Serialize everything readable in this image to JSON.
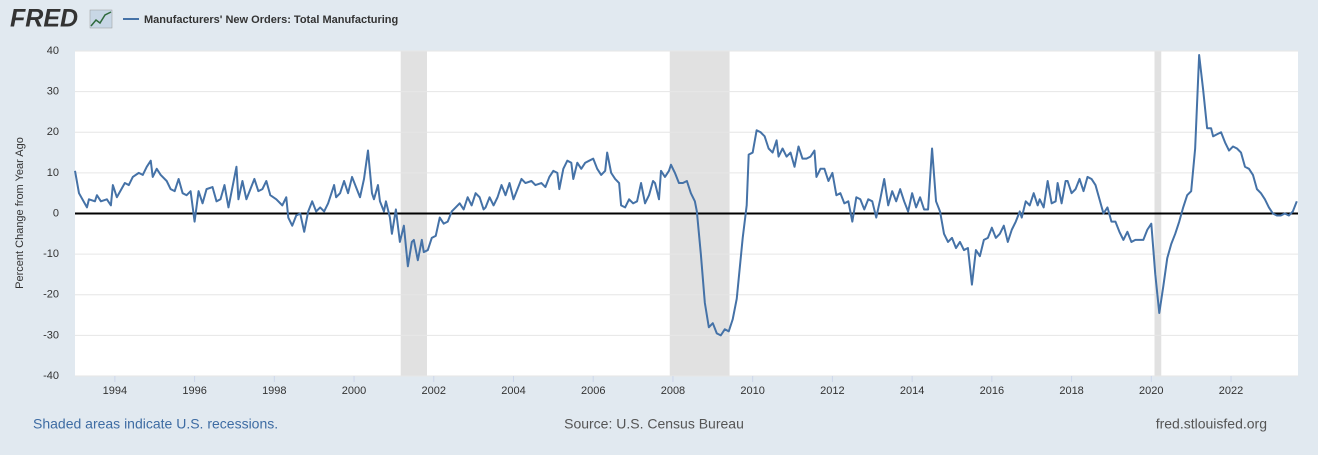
{
  "chart_data": {
    "type": "line",
    "logo": "FRED",
    "y_axis_label": "Percent Change from Year Ago",
    "note": "Shaded areas indicate U.S. recessions.",
    "source": "Source: U.S. Census Bureau",
    "website": "fred.stlouisfed.org",
    "xlim": [
      1993.0,
      2023.68
    ],
    "xticks": [
      1994,
      1996,
      1998,
      2000,
      2002,
      2004,
      2006,
      2008,
      2010,
      2012,
      2014,
      2016,
      2018,
      2020,
      2022
    ],
    "ylim": [
      -40,
      40
    ],
    "yticks": [
      -40,
      -30,
      -20,
      -10,
      0,
      10,
      20,
      30,
      40
    ],
    "grid": true,
    "reference_lines": [
      0
    ],
    "recessions": [
      [
        2001.17,
        2001.83
      ],
      [
        2007.92,
        2009.42
      ],
      [
        2020.08,
        2020.25
      ]
    ],
    "x": [
      1993.0,
      1993.1,
      1993.3,
      1993.35,
      1993.5,
      1993.55,
      1993.65,
      1993.8,
      1993.9,
      1993.95,
      1994.05,
      1994.25,
      1994.35,
      1994.45,
      1994.6,
      1994.7,
      1994.8,
      1994.9,
      1994.95,
      1995.05,
      1995.15,
      1995.3,
      1995.4,
      1995.5,
      1995.6,
      1995.7,
      1995.8,
      1995.9,
      1996.0,
      1996.1,
      1996.2,
      1996.3,
      1996.45,
      1996.55,
      1996.65,
      1996.75,
      1996.85,
      1997.05,
      1997.1,
      1997.2,
      1997.3,
      1997.4,
      1997.5,
      1997.6,
      1997.7,
      1997.8,
      1997.9,
      1998.05,
      1998.2,
      1998.3,
      1998.35,
      1998.45,
      1998.55,
      1998.65,
      1998.75,
      1998.85,
      1998.95,
      1999.05,
      1999.15,
      1999.25,
      1999.35,
      1999.5,
      1999.55,
      1999.65,
      1999.75,
      1999.85,
      1999.95,
      2000.05,
      2000.15,
      2000.25,
      2000.35,
      2000.45,
      2000.5,
      2000.6,
      2000.65,
      2000.75,
      2000.8,
      2000.9,
      2000.95,
      2001.05,
      2001.15,
      2001.25,
      2001.35,
      2001.45,
      2001.5,
      2001.6,
      2001.7,
      2001.75,
      2001.85,
      2001.95,
      2002.05,
      2002.15,
      2002.25,
      2002.35,
      2002.45,
      2002.55,
      2002.65,
      2002.75,
      2002.85,
      2002.95,
      2003.05,
      2003.15,
      2003.25,
      2003.3,
      2003.4,
      2003.5,
      2003.6,
      2003.7,
      2003.8,
      2003.9,
      2004.0,
      2004.1,
      2004.2,
      2004.3,
      2004.45,
      2004.55,
      2004.7,
      2004.8,
      2004.9,
      2005.0,
      2005.1,
      2005.15,
      2005.25,
      2005.35,
      2005.45,
      2005.5,
      2005.6,
      2005.7,
      2005.8,
      2005.9,
      2006.0,
      2006.1,
      2006.2,
      2006.3,
      2006.35,
      2006.45,
      2006.55,
      2006.65,
      2006.7,
      2006.8,
      2006.9,
      2007.0,
      2007.1,
      2007.2,
      2007.3,
      2007.4,
      2007.5,
      2007.55,
      2007.65,
      2007.7,
      2007.8,
      2007.9,
      2007.95,
      2008.05,
      2008.15,
      2008.25,
      2008.35,
      2008.45,
      2008.55,
      2008.6,
      2008.7,
      2008.8,
      2008.9,
      2009.0,
      2009.1,
      2009.2,
      2009.3,
      2009.4,
      2009.5,
      2009.6,
      2009.65,
      2009.75,
      2009.85,
      2009.9,
      2010.0,
      2010.1,
      2010.2,
      2010.3,
      2010.4,
      2010.5,
      2010.6,
      2010.65,
      2010.75,
      2010.85,
      2010.95,
      2011.05,
      2011.15,
      2011.25,
      2011.35,
      2011.45,
      2011.55,
      2011.6,
      2011.7,
      2011.8,
      2011.9,
      2012.0,
      2012.1,
      2012.2,
      2012.3,
      2012.4,
      2012.5,
      2012.6,
      2012.7,
      2012.8,
      2012.9,
      2013.0,
      2013.1,
      2013.2,
      2013.3,
      2013.4,
      2013.5,
      2013.6,
      2013.7,
      2013.8,
      2013.9,
      2014.0,
      2014.1,
      2014.2,
      2014.3,
      2014.4,
      2014.5,
      2014.6,
      2014.7,
      2014.8,
      2014.9,
      2015.0,
      2015.1,
      2015.2,
      2015.3,
      2015.4,
      2015.5,
      2015.6,
      2015.7,
      2015.8,
      2015.9,
      2016.0,
      2016.1,
      2016.2,
      2016.3,
      2016.4,
      2016.5,
      2016.6,
      2016.7,
      2016.75,
      2016.85,
      2016.95,
      2017.05,
      2017.15,
      2017.2,
      2017.3,
      2017.4,
      2017.5,
      2017.6,
      2017.65,
      2017.75,
      2017.85,
      2017.9,
      2018.0,
      2018.1,
      2018.2,
      2018.3,
      2018.4,
      2018.5,
      2018.6,
      2018.7,
      2018.8,
      2018.9,
      2019.0,
      2019.1,
      2019.2,
      2019.3,
      2019.4,
      2019.5,
      2019.6,
      2019.7,
      2019.8,
      2019.9,
      2020.0,
      2020.1,
      2020.2,
      2020.3,
      2020.4,
      2020.5,
      2020.6,
      2020.7,
      2020.8,
      2020.9,
      2021.0,
      2021.1,
      2021.2,
      2021.3,
      2021.4,
      2021.5,
      2021.55,
      2021.65,
      2021.75,
      2021.85,
      2021.95,
      2022.05,
      2022.15,
      2022.25,
      2022.35,
      2022.45,
      2022.55,
      2022.65,
      2022.75,
      2022.85,
      2022.95,
      2023.05,
      2023.15,
      2023.25,
      2023.35,
      2023.45,
      2023.55,
      2023.65
    ],
    "series": [
      {
        "name": "Manufacturers' New Orders: Total Manufacturing",
        "color": "#4572a7",
        "values": [
          10.5,
          5,
          1.5,
          3.5,
          3,
          4.5,
          3,
          3.5,
          2,
          7,
          4,
          7.5,
          7,
          9,
          10,
          9.5,
          11.5,
          13,
          9,
          11,
          9.5,
          8,
          6,
          5.5,
          8.5,
          5,
          4.5,
          5.5,
          -2,
          5.5,
          2.5,
          6,
          6.5,
          3,
          3.5,
          7,
          1.5,
          11.5,
          3.5,
          8,
          3.5,
          6,
          8.5,
          5.5,
          6,
          8,
          4.5,
          3.5,
          2,
          4,
          -1,
          -3,
          -0.5,
          0,
          -4.5,
          0.5,
          3,
          0.5,
          1.5,
          0.5,
          2.5,
          7,
          4,
          5,
          8,
          5,
          9,
          6.5,
          4,
          8.5,
          15.5,
          5,
          3.5,
          7,
          3,
          0.5,
          3,
          -1,
          -5,
          1,
          -7,
          -3,
          -13,
          -7,
          -6.5,
          -11.5,
          -6.5,
          -9.5,
          -9,
          -6,
          -5.5,
          -1,
          -2.5,
          -2,
          0.5,
          1.5,
          2.5,
          1,
          4,
          2,
          5,
          4,
          1,
          1.5,
          4,
          2,
          4,
          7,
          4.5,
          7.5,
          3.5,
          6,
          8.5,
          7.5,
          8,
          7,
          7.5,
          6.5,
          9,
          10.5,
          10,
          6,
          11,
          13,
          12.5,
          8.5,
          12.5,
          11,
          12.5,
          13,
          13.5,
          11,
          9.5,
          10.5,
          15,
          10,
          8.5,
          7.5,
          2,
          1.5,
          3.5,
          2.5,
          3,
          7.5,
          2.5,
          4.5,
          8,
          7.5,
          3.5,
          10.5,
          9,
          10.5,
          12,
          10,
          7.5,
          7.5,
          8,
          5,
          3,
          0.5,
          -10,
          -22,
          -28,
          -27,
          -29.5,
          -30,
          -28.5,
          -29,
          -26,
          -21,
          -16,
          -6,
          2,
          14.5,
          15,
          20.5,
          20,
          19,
          16,
          15,
          18,
          14,
          16,
          14,
          15,
          11.5,
          16.5,
          13.5,
          13.5,
          14,
          15.5,
          9,
          11,
          11,
          8,
          10,
          4.5,
          5,
          2.5,
          3,
          -2,
          4,
          3.5,
          1,
          3.5,
          3,
          -1,
          3.5,
          8.5,
          2,
          5.5,
          3,
          6,
          3,
          0.5,
          5,
          1.5,
          4,
          1,
          1,
          16,
          3,
          0.5,
          -5,
          -7,
          -6,
          -8.5,
          -7,
          -9,
          -8.5,
          -17.5,
          -9,
          -10.5,
          -6.5,
          -6,
          -3.5,
          -6,
          -5,
          -3,
          -7,
          -4,
          -2,
          0.5,
          -1,
          3,
          2,
          5,
          2,
          3.5,
          1.5,
          8,
          2.5,
          3,
          7.5,
          2.5,
          8,
          8,
          5,
          6,
          8.5,
          5.5,
          9,
          8.5,
          7,
          3.5,
          0,
          1.5,
          -2,
          -2,
          -4.5,
          -6.5,
          -4.5,
          -7,
          -6.5,
          -6.5,
          -6.5,
          -4,
          -2.5,
          -15,
          -24.5,
          -18,
          -11,
          -7.5,
          -5,
          -2,
          1.5,
          4.5,
          5.5,
          16,
          39,
          30.5,
          21,
          21,
          19,
          19.5,
          20,
          17.5,
          15.5,
          16.5,
          16,
          15,
          11.5,
          11,
          9.5,
          6,
          5,
          3.5,
          1.5,
          0,
          -0.5,
          -0.5,
          0,
          -0.5,
          0.5,
          3
        ]
      }
    ]
  }
}
